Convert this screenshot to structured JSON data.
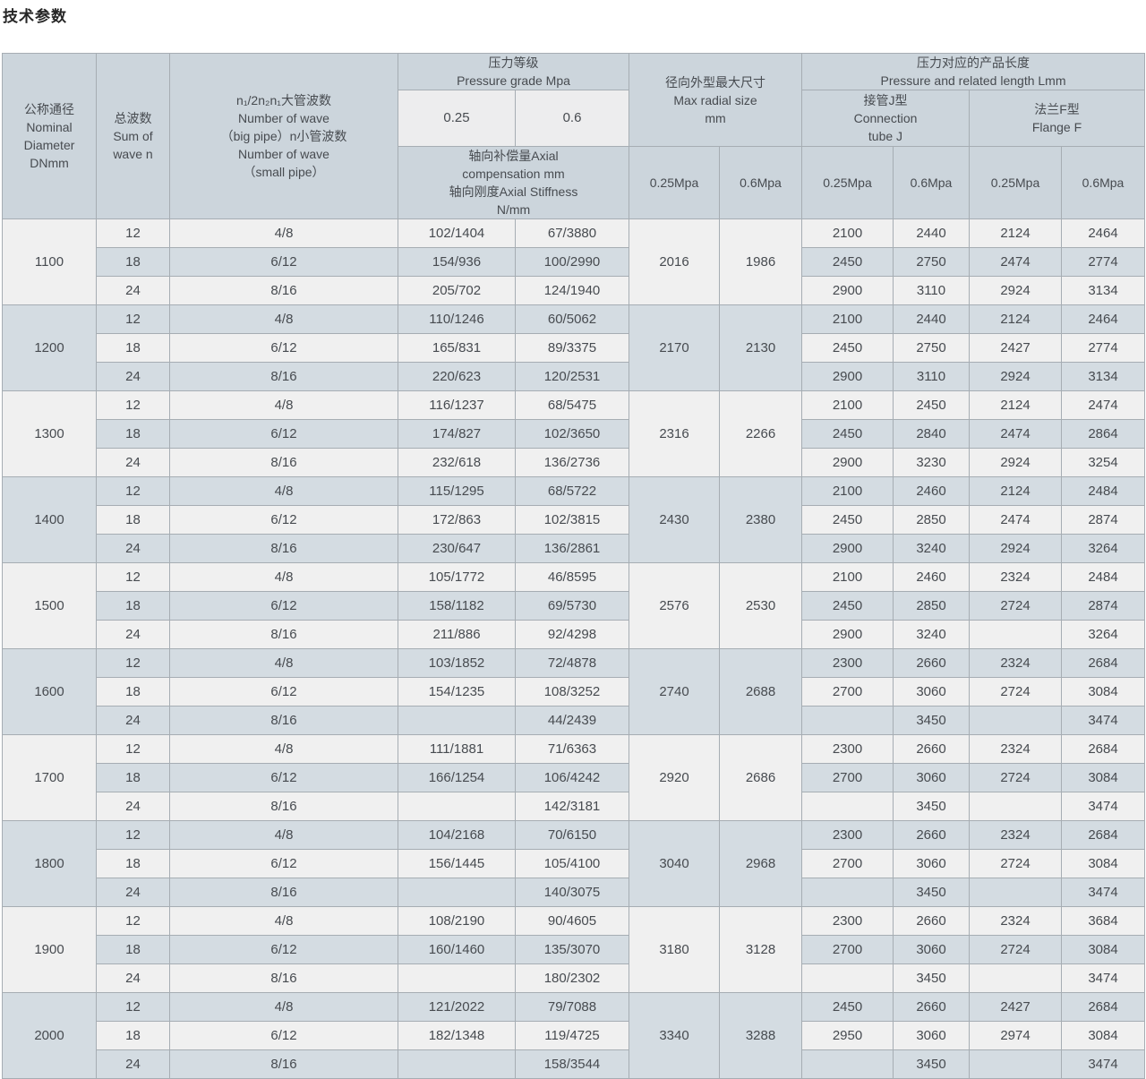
{
  "title": "技术参数",
  "colors": {
    "header_bg": "#ccd5dc",
    "header_light_bg": "#ededee",
    "row_light": "#f0f0f0",
    "row_dark": "#d4dce2",
    "border_inner": "#a6adb3",
    "border_outer": "#878f96",
    "text": "#474b50",
    "title_color": "#262626"
  },
  "header": {
    "nominal_diameter": "公称通径\nNominal\nDiameter\nDNmm",
    "sum_of_wave": "总波数\nSum of\nwave n",
    "wave_numbers": "n₁/2n₂n₁大管波数\nNumber of wave\n（big pipe）n小管波数\nNumber of wave\n（small pipe）",
    "pressure_grade": "压力等级\nPressure grade Mpa",
    "pressure_025": "0.25",
    "pressure_06": "0.6",
    "axial_compensation": "轴向补偿量Axial\ncompensation mm\n轴向刚度Axial Stiffness\nN/mm",
    "max_radial_size": "径向外型最大尺寸\nMax radial size\nmm",
    "pressure_length": "压力对应的产品长度\nPressure and related length Lmm",
    "connection_tube_j": "接管J型\nConnection\ntube J",
    "flange_f": "法兰F型\nFlange F",
    "mpa_025": "0.25Mpa",
    "mpa_06": "0.6Mpa"
  },
  "groups": [
    {
      "dn": "1100",
      "radial_025": "2016",
      "radial_06": "1986",
      "rows": [
        {
          "waves": "12",
          "pipe": "4/8",
          "comp_025": "102/1404",
          "comp_06": "67/3880",
          "j_025": "2100",
          "j_06": "2440",
          "f_025": "2124",
          "f_06": "2464"
        },
        {
          "waves": "18",
          "pipe": "6/12",
          "comp_025": "154/936",
          "comp_06": "100/2990",
          "j_025": "2450",
          "j_06": "2750",
          "f_025": "2474",
          "f_06": "2774"
        },
        {
          "waves": "24",
          "pipe": "8/16",
          "comp_025": "205/702",
          "comp_06": "124/1940",
          "j_025": "2900",
          "j_06": "3110",
          "f_025": "2924",
          "f_06": "3134"
        }
      ]
    },
    {
      "dn": "1200",
      "radial_025": "2170",
      "radial_06": "2130",
      "rows": [
        {
          "waves": "12",
          "pipe": "4/8",
          "comp_025": "110/1246",
          "comp_06": "60/5062",
          "j_025": "2100",
          "j_06": "2440",
          "f_025": "2124",
          "f_06": "2464"
        },
        {
          "waves": "18",
          "pipe": "6/12",
          "comp_025": "165/831",
          "comp_06": "89/3375",
          "j_025": "2450",
          "j_06": "2750",
          "f_025": "2427",
          "f_06": "2774"
        },
        {
          "waves": "24",
          "pipe": "8/16",
          "comp_025": "220/623",
          "comp_06": "120/2531",
          "j_025": "2900",
          "j_06": "3110",
          "f_025": "2924",
          "f_06": "3134"
        }
      ]
    },
    {
      "dn": "1300",
      "radial_025": "2316",
      "radial_06": "2266",
      "rows": [
        {
          "waves": "12",
          "pipe": "4/8",
          "comp_025": "116/1237",
          "comp_06": "68/5475",
          "j_025": "2100",
          "j_06": "2450",
          "f_025": "2124",
          "f_06": "2474"
        },
        {
          "waves": "18",
          "pipe": "6/12",
          "comp_025": "174/827",
          "comp_06": "102/3650",
          "j_025": "2450",
          "j_06": "2840",
          "f_025": "2474",
          "f_06": "2864"
        },
        {
          "waves": "24",
          "pipe": "8/16",
          "comp_025": "232/618",
          "comp_06": "136/2736",
          "j_025": "2900",
          "j_06": "3230",
          "f_025": "2924",
          "f_06": "3254"
        }
      ]
    },
    {
      "dn": "1400",
      "radial_025": "2430",
      "radial_06": "2380",
      "rows": [
        {
          "waves": "12",
          "pipe": "4/8",
          "comp_025": "115/1295",
          "comp_06": "68/5722",
          "j_025": "2100",
          "j_06": "2460",
          "f_025": "2124",
          "f_06": "2484"
        },
        {
          "waves": "18",
          "pipe": "6/12",
          "comp_025": "172/863",
          "comp_06": "102/3815",
          "j_025": "2450",
          "j_06": "2850",
          "f_025": "2474",
          "f_06": "2874"
        },
        {
          "waves": "24",
          "pipe": "8/16",
          "comp_025": "230/647",
          "comp_06": "136/2861",
          "j_025": "2900",
          "j_06": "3240",
          "f_025": "2924",
          "f_06": "3264"
        }
      ]
    },
    {
      "dn": "1500",
      "radial_025": "2576",
      "radial_06": "2530",
      "rows": [
        {
          "waves": "12",
          "pipe": "4/8",
          "comp_025": "105/1772",
          "comp_06": "46/8595",
          "j_025": "2100",
          "j_06": "2460",
          "f_025": "2324",
          "f_06": "2484"
        },
        {
          "waves": "18",
          "pipe": "6/12",
          "comp_025": "158/1182",
          "comp_06": "69/5730",
          "j_025": "2450",
          "j_06": "2850",
          "f_025": "2724",
          "f_06": "2874"
        },
        {
          "waves": "24",
          "pipe": "8/16",
          "comp_025": "211/886",
          "comp_06": "92/4298",
          "j_025": "2900",
          "j_06": "3240",
          "f_025": "",
          "f_06": "3264"
        }
      ]
    },
    {
      "dn": "1600",
      "radial_025": "2740",
      "radial_06": "2688",
      "rows": [
        {
          "waves": "12",
          "pipe": "4/8",
          "comp_025": "103/1852",
          "comp_06": "72/4878",
          "j_025": "2300",
          "j_06": "2660",
          "f_025": "2324",
          "f_06": "2684"
        },
        {
          "waves": "18",
          "pipe": "6/12",
          "comp_025": "154/1235",
          "comp_06": "108/3252",
          "j_025": "2700",
          "j_06": "3060",
          "f_025": "2724",
          "f_06": "3084"
        },
        {
          "waves": "24",
          "pipe": "8/16",
          "comp_025": "",
          "comp_06": "44/2439",
          "j_025": "",
          "j_06": "3450",
          "f_025": "",
          "f_06": "3474"
        }
      ]
    },
    {
      "dn": "1700",
      "radial_025": "2920",
      "radial_06": "2686",
      "rows": [
        {
          "waves": "12",
          "pipe": "4/8",
          "comp_025": "111/1881",
          "comp_06": "71/6363",
          "j_025": "2300",
          "j_06": "2660",
          "f_025": "2324",
          "f_06": "2684"
        },
        {
          "waves": "18",
          "pipe": "6/12",
          "comp_025": "166/1254",
          "comp_06": "106/4242",
          "j_025": "2700",
          "j_06": "3060",
          "f_025": "2724",
          "f_06": "3084"
        },
        {
          "waves": "24",
          "pipe": "8/16",
          "comp_025": "",
          "comp_06": "142/3181",
          "j_025": "",
          "j_06": "3450",
          "f_025": "",
          "f_06": "3474"
        }
      ]
    },
    {
      "dn": "1800",
      "radial_025": "3040",
      "radial_06": "2968",
      "rows": [
        {
          "waves": "12",
          "pipe": "4/8",
          "comp_025": "104/2168",
          "comp_06": "70/6150",
          "j_025": "2300",
          "j_06": "2660",
          "f_025": "2324",
          "f_06": "2684"
        },
        {
          "waves": "18",
          "pipe": "6/12",
          "comp_025": "156/1445",
          "comp_06": "105/4100",
          "j_025": "2700",
          "j_06": "3060",
          "f_025": "2724",
          "f_06": "3084"
        },
        {
          "waves": "24",
          "pipe": "8/16",
          "comp_025": "",
          "comp_06": "140/3075",
          "j_025": "",
          "j_06": "3450",
          "f_025": "",
          "f_06": "3474"
        }
      ]
    },
    {
      "dn": "1900",
      "radial_025": "3180",
      "radial_06": "3128",
      "rows": [
        {
          "waves": "12",
          "pipe": "4/8",
          "comp_025": "108/2190",
          "comp_06": "90/4605",
          "j_025": "2300",
          "j_06": "2660",
          "f_025": "2324",
          "f_06": "3684"
        },
        {
          "waves": "18",
          "pipe": "6/12",
          "comp_025": "160/1460",
          "comp_06": "135/3070",
          "j_025": "2700",
          "j_06": "3060",
          "f_025": "2724",
          "f_06": "3084"
        },
        {
          "waves": "24",
          "pipe": "8/16",
          "comp_025": "",
          "comp_06": "180/2302",
          "j_025": "",
          "j_06": "3450",
          "f_025": "",
          "f_06": "3474"
        }
      ]
    },
    {
      "dn": "2000",
      "radial_025": "3340",
      "radial_06": "3288",
      "rows": [
        {
          "waves": "12",
          "pipe": "4/8",
          "comp_025": "121/2022",
          "comp_06": "79/7088",
          "j_025": "2450",
          "j_06": "2660",
          "f_025": "2427",
          "f_06": "2684"
        },
        {
          "waves": "18",
          "pipe": "6/12",
          "comp_025": "182/1348",
          "comp_06": "119/4725",
          "j_025": "2950",
          "j_06": "3060",
          "f_025": "2974",
          "f_06": "3084"
        },
        {
          "waves": "24",
          "pipe": "8/16",
          "comp_025": "",
          "comp_06": "158/3544",
          "j_025": "",
          "j_06": "3450",
          "f_025": "",
          "f_06": "3474"
        }
      ]
    }
  ]
}
